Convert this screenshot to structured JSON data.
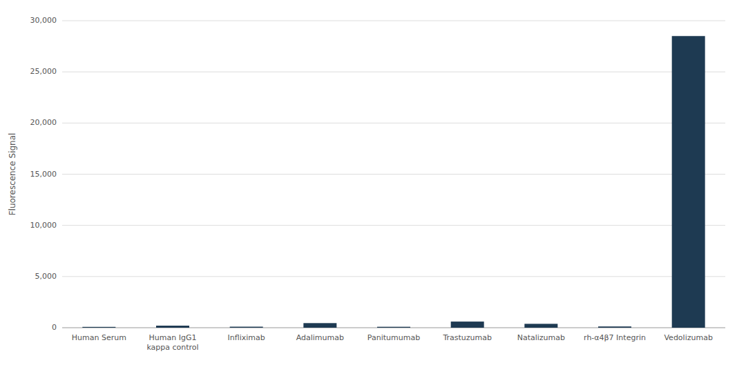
{
  "chart_data": {
    "type": "bar",
    "categories": [
      "Human Serum",
      "Human IgG1\nkappa control",
      "Infliximab",
      "Adalimumab",
      "Panitumumab",
      "Trastuzumab",
      "Natalizumab",
      "rh-α4β7 Integrin",
      "Vedolizumab"
    ],
    "values": [
      80,
      200,
      100,
      450,
      90,
      600,
      380,
      120,
      28500
    ],
    "color": "#1e3a52",
    "ylabel": "Fluorescence Signal",
    "ylim": [
      0,
      30000
    ],
    "yticks": [
      0,
      {
        "value": 5000,
        "label": "5,000"
      },
      {
        "value": 10000,
        "label": "10,000"
      },
      {
        "value": 15000,
        "label": "15,000"
      },
      {
        "value": 20000,
        "label": "20,000"
      },
      {
        "value": 25000,
        "label": "25,000"
      },
      {
        "value": 30000,
        "label": "30,000"
      }
    ],
    "grid": true
  }
}
